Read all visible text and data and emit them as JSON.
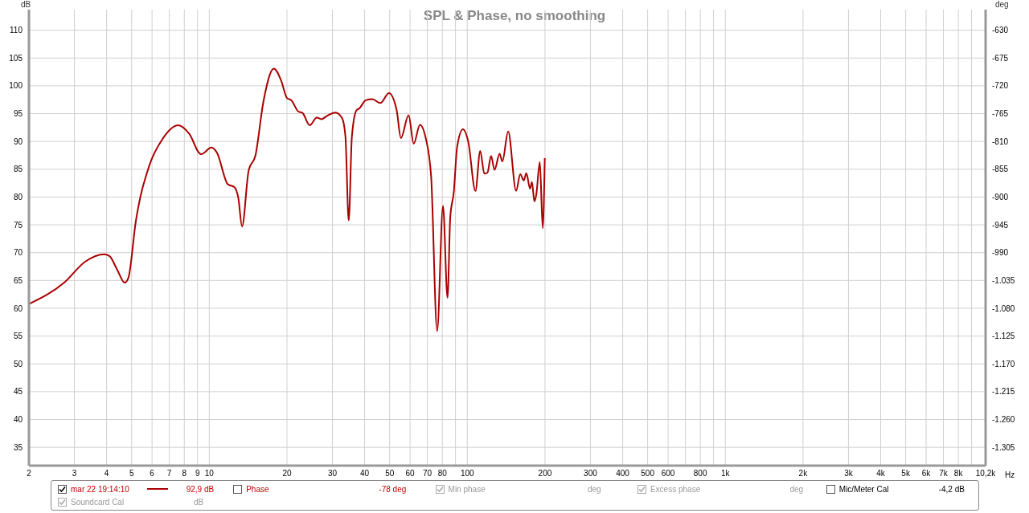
{
  "chart_data": {
    "type": "line",
    "title": "SPL & Phase, no smoothing",
    "ylabel": "dB",
    "y2label": "deg",
    "log": "x",
    "grid": true,
    "legend": "bottom",
    "marker": "none",
    "line_style": "solid",
    "xlim": [
      2,
      10200
    ],
    "ylim": [
      31.7,
      113.7
    ],
    "y2lim": [
      -1334.7,
      -596.7
    ],
    "xticks": [
      2,
      3,
      4,
      5,
      6,
      7,
      8,
      9,
      10,
      20,
      30,
      40,
      50,
      60,
      70,
      80,
      {
        "value": 90,
        "label": null
      },
      100,
      200,
      300,
      400,
      500,
      600,
      {
        "value": 700,
        "label": null
      },
      800,
      {
        "value": 900,
        "label": null
      },
      {
        "value": 1000,
        "label": "1k"
      },
      {
        "value": 2000,
        "label": "2k"
      },
      {
        "value": 3000,
        "label": "3k"
      },
      {
        "value": 4000,
        "label": "4k"
      },
      {
        "value": 5000,
        "label": "5k"
      },
      {
        "value": 6000,
        "label": "6k"
      },
      {
        "value": 7000,
        "label": "7k"
      },
      {
        "value": 8000,
        "label": "8k"
      },
      {
        "value": 9000,
        "label": null
      },
      {
        "value": 10200,
        "label": "10,2k"
      }
    ],
    "xlabel": "Hz",
    "yticks": [
      35,
      40,
      45,
      50,
      55,
      60,
      65,
      70,
      75,
      80,
      85,
      90,
      95,
      100,
      105,
      110
    ],
    "y2ticks": [
      -630,
      -675,
      -720,
      -765,
      -810,
      -855,
      -900,
      -945,
      -990,
      {
        "value": -1035,
        "label": "-1.035"
      },
      {
        "value": -1080,
        "label": "-1.080"
      },
      {
        "value": -1125,
        "label": "-1.125"
      },
      {
        "value": -1170,
        "label": "-1.170"
      },
      {
        "value": -1215,
        "label": "-1.215"
      },
      {
        "value": -1260,
        "label": "-1.260"
      },
      {
        "value": -1305,
        "label": "-1.305"
      }
    ],
    "series": [
      {
        "name": "mar 22 19:14:10",
        "color": "#aa0000",
        "x": [
          2.01,
          2.74,
          3.31,
          3.91,
          4.1,
          4.4,
          4.7,
          4.86,
          5.19,
          5.85,
          6.58,
          7.59,
          8.35,
          9.29,
          10.2,
          10.7,
          11.8,
          12.5,
          12.95,
          13.4,
          14.2,
          15.1,
          16.2,
          17.8,
          19.0,
          20.0,
          20.8,
          22.1,
          23.0,
          24.5,
          26.1,
          27.2,
          28.6,
          30.8,
          32.7,
          33.7,
          34.7,
          35.7,
          37.2,
          38.1,
          40.4,
          42.9,
          46.0,
          49.7,
          53.2,
          55.3,
          59.2,
          62.0,
          65.5,
          69.0,
          72.4,
          76.4,
          80.5,
          83.8,
          85.9,
          88.6,
          91.3,
          96.2,
          100.9,
          107.5,
          112.2,
          116.4,
          119.7,
          123.6,
          127.5,
          133.4,
          136.7,
          144,
          154.6,
          160.4,
          165.4,
          169.4,
          175,
          178,
          182,
          185,
          191,
          196,
          199.6
        ],
        "values": [
          60.8,
          64.6,
          68.4,
          69.7,
          69.4,
          66.9,
          64.6,
          65.5,
          75.6,
          85.6,
          90.4,
          92.9,
          91.4,
          87.7,
          88.9,
          88.0,
          82.3,
          81.8,
          79.9,
          74.7,
          84.7,
          87.5,
          97.1,
          103.1,
          100.9,
          97.8,
          97.4,
          95.4,
          95.1,
          92.9,
          94.3,
          94.0,
          94.6,
          95.2,
          94.2,
          90.9,
          75.8,
          90.9,
          95.6,
          95.9,
          97.4,
          97.6,
          96.9,
          98.7,
          95.7,
          90.6,
          94.7,
          89.6,
          93.0,
          90.6,
          83.7,
          55.9,
          78.4,
          61.9,
          76.5,
          80.8,
          89.0,
          92.2,
          89.9,
          81.1,
          88.3,
          84.2,
          84.4,
          87.4,
          84.9,
          87.8,
          86.4,
          91.8,
          81.1,
          84.1,
          83.0,
          84.3,
          81.5,
          82.7,
          79.2,
          80.4,
          86.3,
          74.4,
          87.0
        ]
      }
    ],
    "annotations": [
      "92,9 dB",
      "Phase",
      "-78 deg",
      "Min phase",
      "deg",
      "Excess phase",
      "deg",
      "Mic/Meter Cal",
      "-4,2 dB",
      "Soundcard Cal",
      "dB"
    ]
  }
}
